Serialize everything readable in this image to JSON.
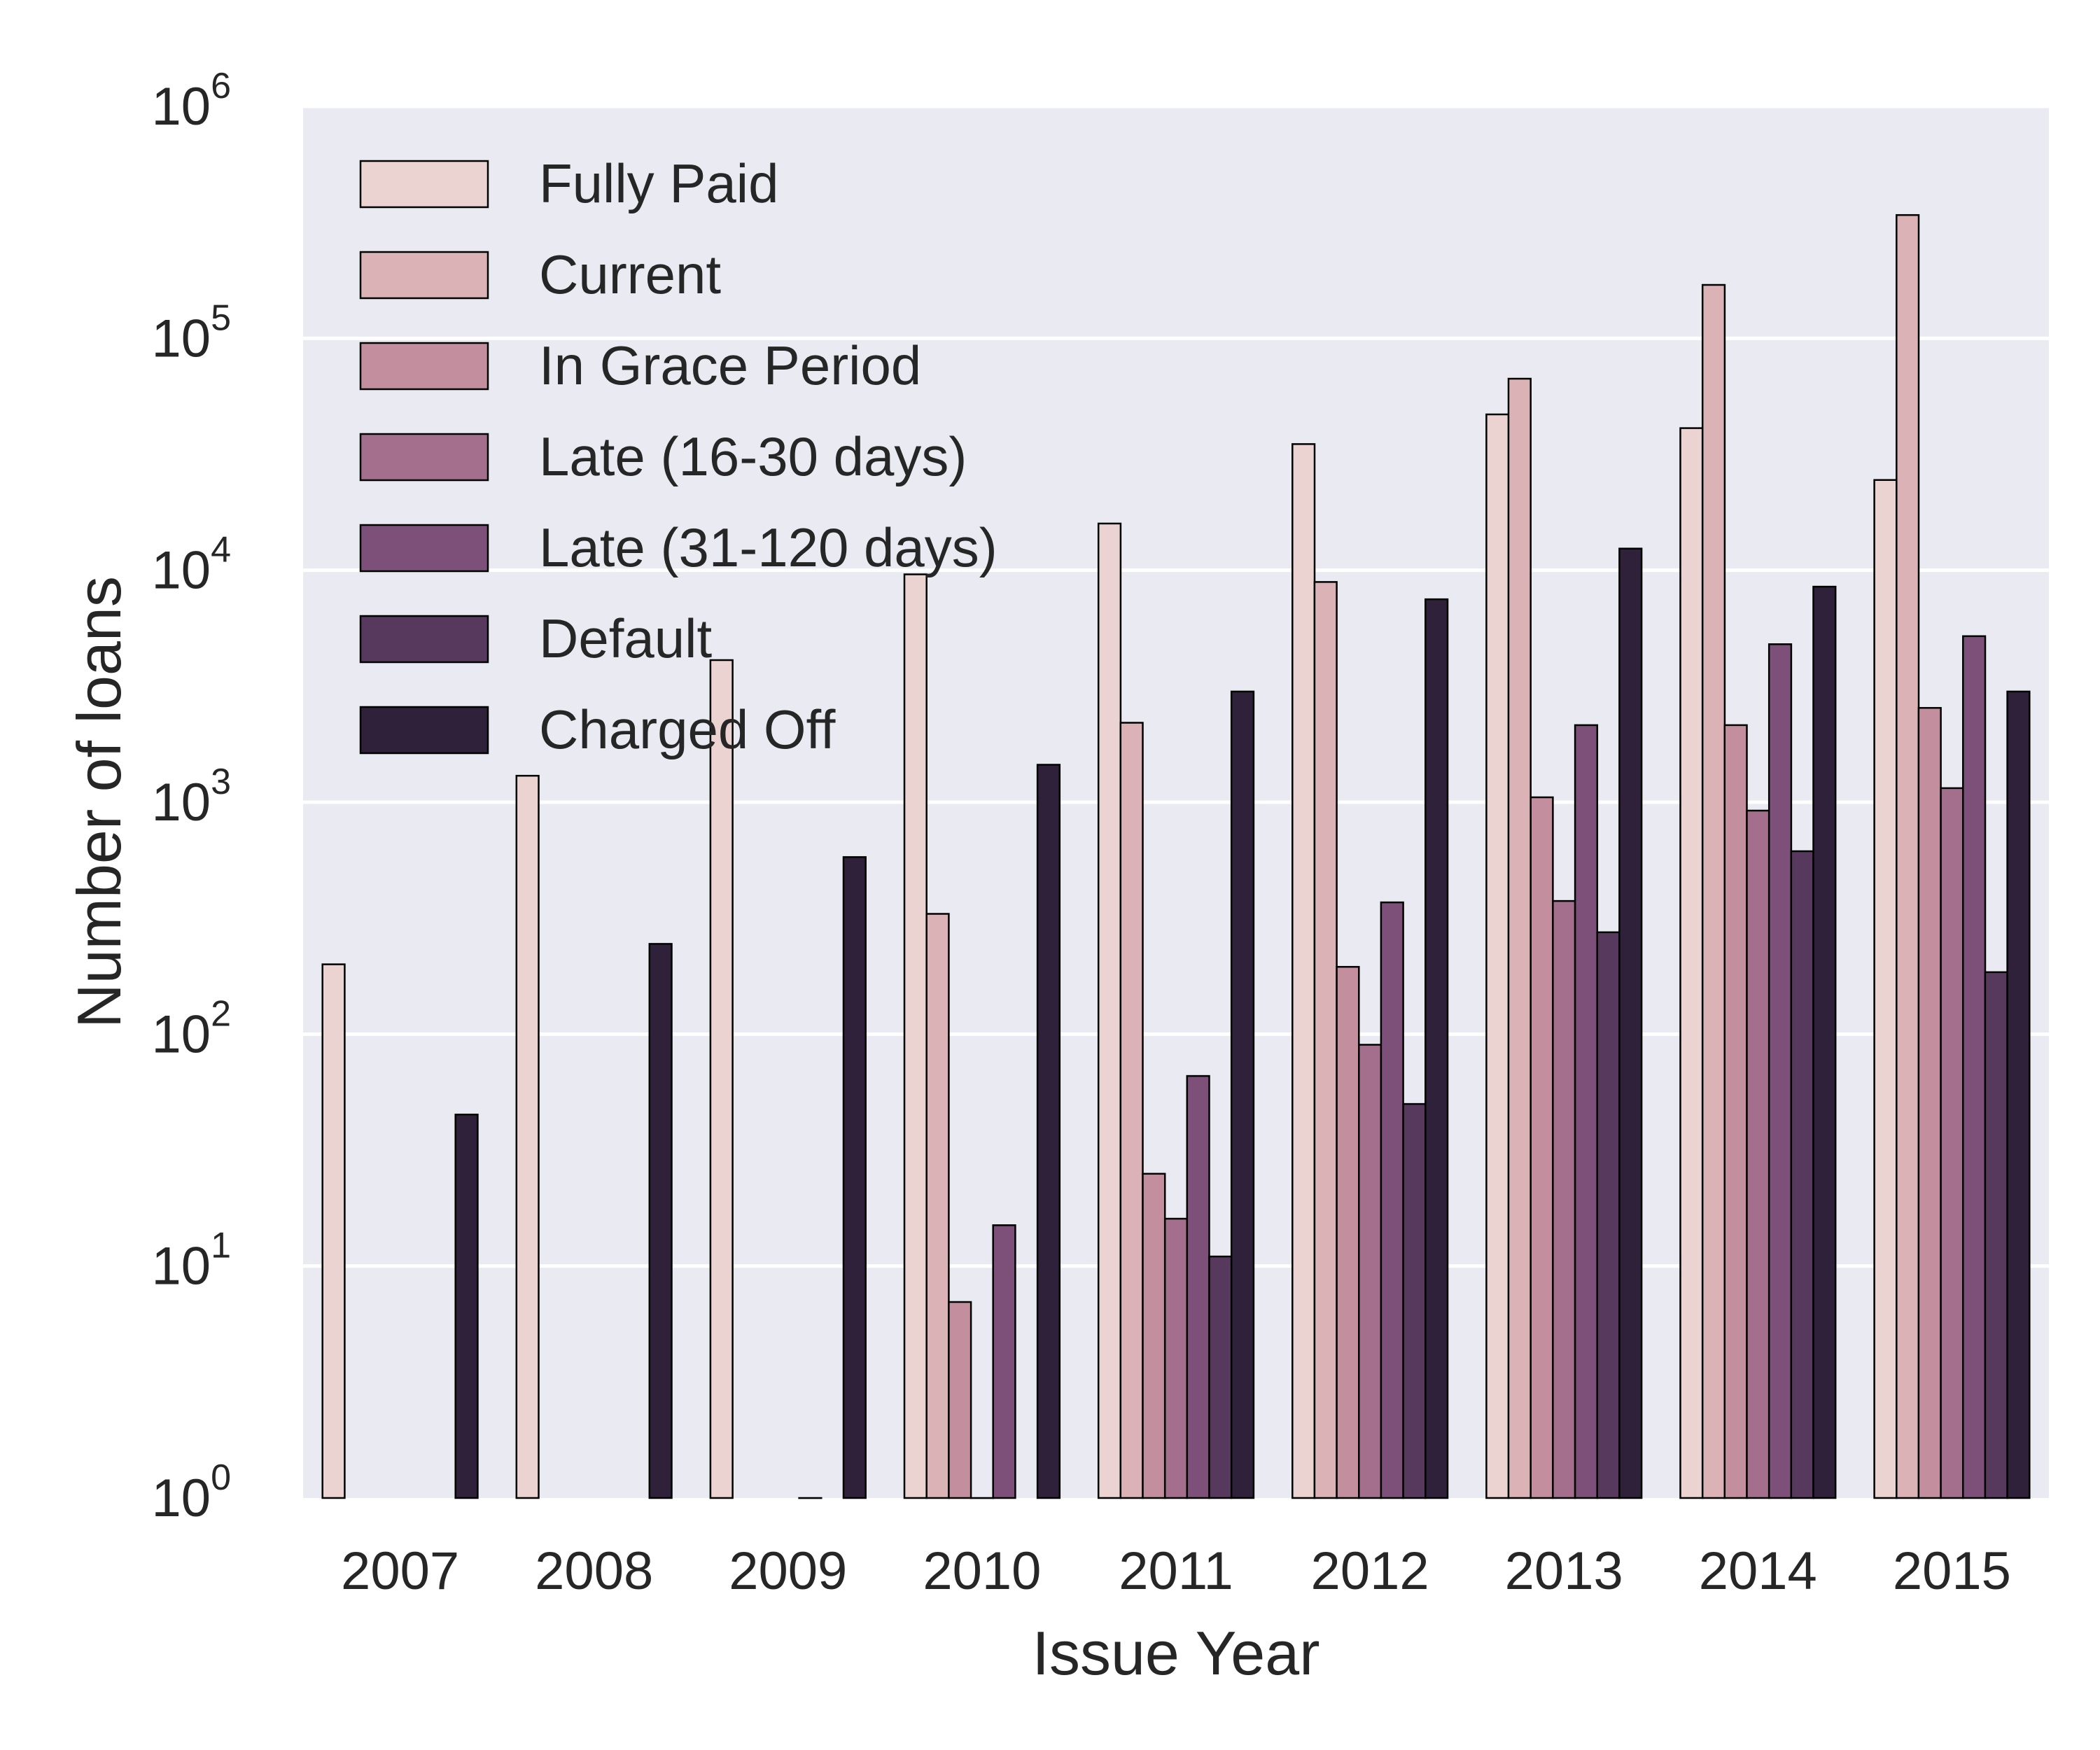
{
  "chart_data": {
    "type": "bar",
    "title": "",
    "xlabel": "Issue Year",
    "ylabel": "Number of loans",
    "yscale": "log",
    "ylim": [
      1,
      1000000
    ],
    "yticks": [
      {
        "value": 1,
        "base": "10",
        "exp": "0"
      },
      {
        "value": 10,
        "base": "10",
        "exp": "1"
      },
      {
        "value": 100,
        "base": "10",
        "exp": "2"
      },
      {
        "value": 1000,
        "base": "10",
        "exp": "3"
      },
      {
        "value": 10000,
        "base": "10",
        "exp": "4"
      },
      {
        "value": 100000,
        "base": "10",
        "exp": "5"
      },
      {
        "value": 1000000,
        "base": "10",
        "exp": "6"
      }
    ],
    "grid": "horizontal",
    "legend_position": "top-left",
    "background": "#eaeaf2",
    "categories": [
      "2007",
      "2008",
      "2009",
      "2010",
      "2011",
      "2012",
      "2013",
      "2014",
      "2015"
    ],
    "series": [
      {
        "name": "Fully Paid",
        "color": "#ead3d0",
        "values": [
          200,
          1300,
          4100,
          9600,
          15900,
          35000,
          47000,
          41000,
          24500
        ]
      },
      {
        "name": "Current",
        "color": "#dbb3b7",
        "values": [
          null,
          null,
          null,
          330,
          2200,
          8900,
          67000,
          170000,
          340000
        ]
      },
      {
        "name": "In Grace Period",
        "color": "#c38f9f",
        "values": [
          null,
          null,
          null,
          7,
          25,
          195,
          1050,
          2150,
          2550
        ]
      },
      {
        "name": "Late (16-30 days)",
        "color": "#a36f8d",
        "values": [
          null,
          null,
          null,
          1,
          16,
          90,
          375,
          920,
          1150
        ]
      },
      {
        "name": "Late (31-120 days)",
        "color": "#7c5078",
        "values": [
          null,
          null,
          1,
          15,
          66,
          370,
          2150,
          4800,
          5200
        ]
      },
      {
        "name": "Default",
        "color": "#56395c",
        "values": [
          null,
          null,
          null,
          null,
          11,
          50,
          275,
          615,
          185
        ]
      },
      {
        "name": "Charged Off",
        "color": "#2e2139",
        "values": [
          45,
          245,
          580,
          1450,
          3000,
          7500,
          12400,
          8500,
          3000
        ]
      }
    ]
  }
}
